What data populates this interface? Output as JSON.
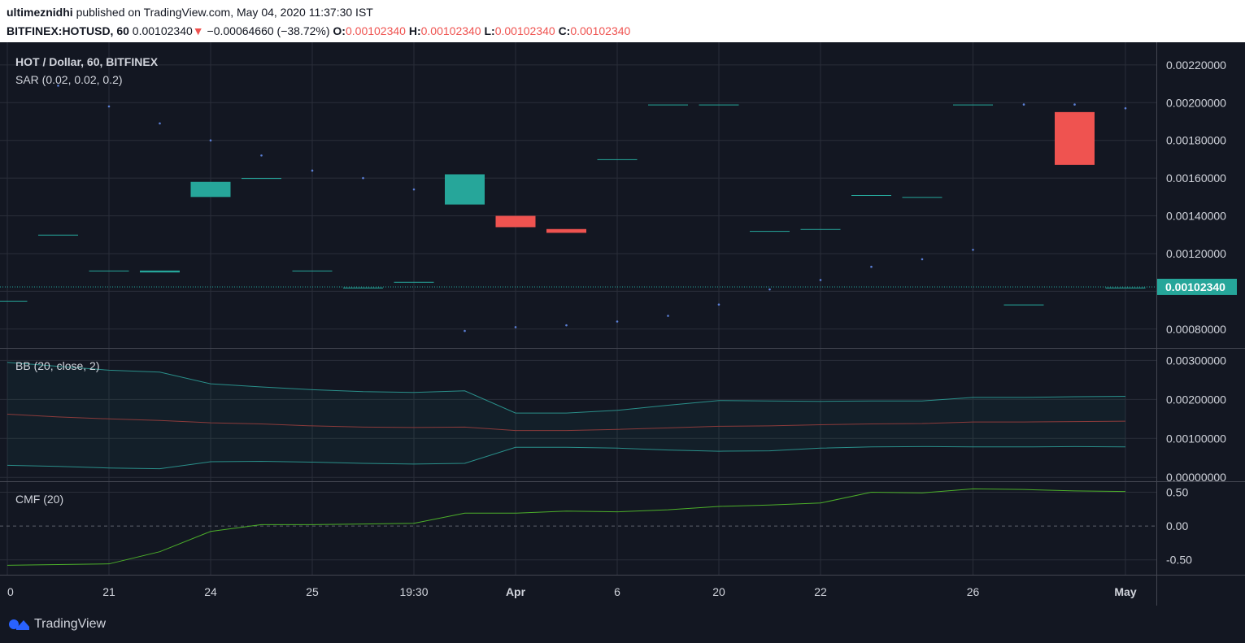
{
  "header": {
    "author": "ultimeznidhi",
    "published_text": "published on TradingView.com, May 04, 2020 11:37:30 IST",
    "symbol": "BITFINEX:HOTUSD, 60",
    "last_price": "0.00102340",
    "down_arrow": "▼",
    "change": "−0.00064660 (−38.72%)",
    "open_label": "O:",
    "open": "0.00102340",
    "high_label": "H:",
    "high": "0.00102340",
    "low_label": "L:",
    "low": "0.00102340",
    "close_label": "C:",
    "close": "0.00102340"
  },
  "footer": {
    "brand": "TradingView",
    "logo_icon": "tradingview-logo-icon"
  },
  "colors": {
    "background": "#131722",
    "grid": "#2a2e39",
    "up": "#26a69a",
    "down": "#ef5350",
    "sar": "#5b7fd6",
    "bb_band": "#2a8f8a",
    "bb_basis": "#8c3b3b",
    "cmf": "#4caf2a",
    "text": "#d1d4dc"
  },
  "chart_data": [
    {
      "type": "candlestick",
      "title": "HOT / Dollar, 60, BITFINEX",
      "indicator": "SAR (0.02, 0.02, 0.2)",
      "x_tick_labels": [
        "0",
        "21",
        "24",
        "25",
        "19:30",
        "Apr",
        "6",
        "20",
        "22",
        "26",
        "May"
      ],
      "y_tick_labels": [
        "0.00220000",
        "0.00200000",
        "0.00180000",
        "0.00160000",
        "0.00140000",
        "0.00120000",
        "0.00080000"
      ],
      "ylim": [
        0.0007,
        0.00232
      ],
      "current_price": 0.0010234,
      "current_price_label": "0.00102340",
      "candles": [
        {
          "o": 0.00095,
          "c": 0.00095
        },
        {
          "o": 0.0013,
          "c": 0.0013
        },
        {
          "o": 0.00111,
          "c": 0.00111
        },
        {
          "o": 0.0011,
          "c": 0.00111
        },
        {
          "o": 0.0015,
          "c": 0.00158
        },
        {
          "o": 0.0016,
          "c": 0.0016
        },
        {
          "o": 0.00111,
          "c": 0.00111
        },
        {
          "o": 0.00102,
          "c": 0.00102
        },
        {
          "o": 0.00105,
          "c": 0.00105
        },
        {
          "o": 0.00146,
          "c": 0.00162
        },
        {
          "o": 0.0014,
          "c": 0.00134
        },
        {
          "o": 0.00133,
          "c": 0.00131
        },
        {
          "o": 0.0017,
          "c": 0.0017
        },
        {
          "o": 0.00199,
          "c": 0.00199
        },
        {
          "o": 0.00199,
          "c": 0.00199
        },
        {
          "o": 0.00132,
          "c": 0.00132
        },
        {
          "o": 0.00133,
          "c": 0.00133
        },
        {
          "o": 0.00151,
          "c": 0.00151
        },
        {
          "o": 0.0015,
          "c": 0.0015
        },
        {
          "o": 0.00199,
          "c": 0.00199
        },
        {
          "o": 0.00093,
          "c": 0.00093
        },
        {
          "o": 0.00195,
          "c": 0.00167
        },
        {
          "o": 0.00102,
          "c": 0.00102
        }
      ],
      "sar": [
        null,
        0.00209,
        0.00198,
        0.00189,
        0.0018,
        0.00172,
        0.00164,
        0.0016,
        0.00154,
        0.00079,
        0.00081,
        0.00082,
        0.00084,
        0.00087,
        0.00093,
        0.00101,
        0.00106,
        0.00113,
        0.00117,
        0.00122,
        0.00199,
        0.00199,
        0.00197
      ]
    },
    {
      "type": "line",
      "indicator": "BB (20, close, 2)",
      "y_tick_labels": [
        "0.00300000",
        "0.00200000",
        "0.00100000",
        "0.00000000"
      ],
      "ylim": [
        -0.0001,
        0.0033
      ],
      "series": [
        {
          "role": "upper",
          "values": [
            0.00295,
            0.00285,
            0.00275,
            0.0027,
            0.0024,
            0.00232,
            0.00225,
            0.0022,
            0.00218,
            0.00222,
            0.00165,
            0.00165,
            0.00172,
            0.00185,
            0.00197,
            0.00196,
            0.00195,
            0.00196,
            0.00196,
            0.00205,
            0.00205,
            0.00207,
            0.00208
          ]
        },
        {
          "role": "basis",
          "values": [
            0.00162,
            0.00155,
            0.0015,
            0.00146,
            0.0014,
            0.00137,
            0.00132,
            0.00129,
            0.00128,
            0.00129,
            0.0012,
            0.0012,
            0.00123,
            0.00127,
            0.00131,
            0.00132,
            0.00135,
            0.00137,
            0.00138,
            0.00142,
            0.00142,
            0.00143,
            0.00144
          ]
        },
        {
          "role": "lower",
          "values": [
            0.00031,
            0.00028,
            0.00024,
            0.00022,
            0.0004,
            0.00041,
            0.00039,
            0.00036,
            0.00034,
            0.00036,
            0.00077,
            0.00077,
            0.00075,
            0.0007,
            0.00067,
            0.00068,
            0.00075,
            0.00078,
            0.00079,
            0.00078,
            0.00078,
            0.00079,
            0.00078
          ]
        }
      ]
    },
    {
      "type": "line",
      "indicator": "CMF (20)",
      "y_tick_labels": [
        "0.50",
        "0.00",
        "-0.50"
      ],
      "ylim": [
        -0.72,
        0.65
      ],
      "series": [
        {
          "role": "cmf",
          "values": [
            -0.58,
            -0.57,
            -0.56,
            -0.38,
            -0.08,
            0.02,
            0.02,
            0.03,
            0.04,
            0.19,
            0.19,
            0.22,
            0.21,
            0.24,
            0.29,
            0.31,
            0.34,
            0.5,
            0.49,
            0.55,
            0.54,
            0.52,
            0.51
          ]
        }
      ]
    }
  ]
}
